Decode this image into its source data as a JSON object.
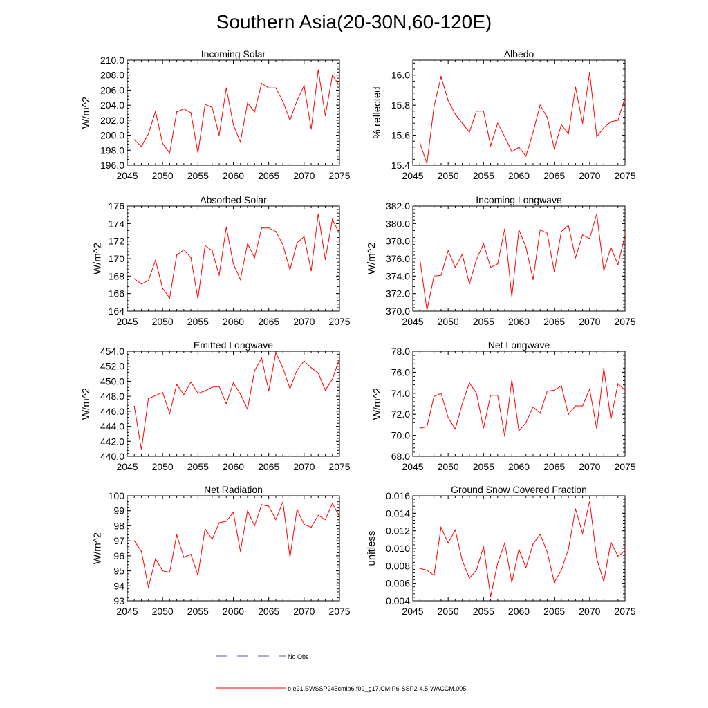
{
  "figure": {
    "title": "Southern Asia(20-30N,60-120E)",
    "legend": [
      {
        "label": "No Obs",
        "color": "#5a5aa8",
        "style": "dashed"
      },
      {
        "label": "b.e21.BWSSP245cmip6.f09_g17.CMIP6-SSP2-4.5-WACCM.005",
        "color": "#ff0000",
        "style": "solid"
      }
    ]
  },
  "chart_data": [
    {
      "type": "line",
      "title": "Incoming Solar",
      "ylabel": "W/m^2",
      "xlabel": "",
      "xlim": [
        2045,
        2075
      ],
      "xticks": [
        "2045",
        "2050",
        "2055",
        "2060",
        "2065",
        "2070",
        "2075"
      ],
      "ylim": [
        196.0,
        210.0
      ],
      "yticks": [
        "196.0",
        "198.0",
        "200.0",
        "202.0",
        "204.0",
        "206.0",
        "208.0",
        "210.0"
      ],
      "color": "#ff0000",
      "x": [
        2046,
        2047,
        2048,
        2049,
        2050,
        2051,
        2052,
        2053,
        2054,
        2055,
        2056,
        2057,
        2058,
        2059,
        2060,
        2061,
        2062,
        2063,
        2064,
        2065,
        2066,
        2067,
        2068,
        2069,
        2070,
        2071,
        2072,
        2073,
        2074,
        2075
      ],
      "values": [
        199.4,
        198.5,
        200.2,
        203.2,
        198.9,
        197.6,
        203.1,
        203.5,
        203.0,
        197.6,
        204.1,
        203.7,
        200.0,
        206.3,
        201.4,
        199.1,
        204.3,
        203.1,
        206.9,
        206.3,
        206.3,
        204.5,
        202.0,
        204.6,
        206.6,
        200.8,
        208.7,
        202.6,
        208.0,
        206.6
      ]
    },
    {
      "type": "line",
      "title": "Albedo",
      "ylabel": "% reflected",
      "xlabel": "",
      "xlim": [
        2045,
        2075
      ],
      "xticks": [
        "2045",
        "2050",
        "2055",
        "2060",
        "2065",
        "2070",
        "2075"
      ],
      "ylim": [
        15.4,
        16.1
      ],
      "yticks": [
        "15.4",
        "15.6",
        "15.8",
        "16.0"
      ],
      "color": "#ff0000",
      "x": [
        2046,
        2047,
        2048,
        2049,
        2050,
        2051,
        2052,
        2053,
        2054,
        2055,
        2056,
        2057,
        2058,
        2059,
        2060,
        2061,
        2062,
        2063,
        2064,
        2065,
        2066,
        2067,
        2068,
        2069,
        2070,
        2071,
        2072,
        2073,
        2074,
        2075
      ],
      "values": [
        15.55,
        15.41,
        15.79,
        15.99,
        15.83,
        15.74,
        15.68,
        15.62,
        15.76,
        15.76,
        15.53,
        15.68,
        15.59,
        15.49,
        15.52,
        15.46,
        15.62,
        15.8,
        15.72,
        15.51,
        15.67,
        15.61,
        15.92,
        15.68,
        16.02,
        15.59,
        15.65,
        15.69,
        15.7,
        15.85
      ]
    },
    {
      "type": "line",
      "title": "Absorbed Solar",
      "ylabel": "W/m^2",
      "xlabel": "",
      "xlim": [
        2045,
        2075
      ],
      "xticks": [
        "2045",
        "2050",
        "2055",
        "2060",
        "2065",
        "2070",
        "2075"
      ],
      "ylim": [
        164,
        176
      ],
      "yticks": [
        "164",
        "166",
        "168",
        "170",
        "172",
        "174",
        "176"
      ],
      "color": "#ff0000",
      "x": [
        2046,
        2047,
        2048,
        2049,
        2050,
        2051,
        2052,
        2053,
        2054,
        2055,
        2056,
        2057,
        2058,
        2059,
        2060,
        2061,
        2062,
        2063,
        2064,
        2065,
        2066,
        2067,
        2068,
        2069,
        2070,
        2071,
        2072,
        2073,
        2074,
        2075
      ],
      "values": [
        167.7,
        167.1,
        167.5,
        169.8,
        166.6,
        165.5,
        170.4,
        171.0,
        170.1,
        165.4,
        171.5,
        170.9,
        168.1,
        173.6,
        169.4,
        167.6,
        171.7,
        170.1,
        173.5,
        173.5,
        173.1,
        171.6,
        168.7,
        171.8,
        172.5,
        168.6,
        175.1,
        169.9,
        174.5,
        172.8
      ]
    },
    {
      "type": "line",
      "title": "Incoming Longwave",
      "ylabel": "W/m^2",
      "xlabel": "",
      "xlim": [
        2045,
        2075
      ],
      "xticks": [
        "2045",
        "2050",
        "2055",
        "2060",
        "2065",
        "2070",
        "2075"
      ],
      "ylim": [
        370.0,
        382.0
      ],
      "yticks": [
        "370.0",
        "372.0",
        "374.0",
        "376.0",
        "378.0",
        "380.0",
        "382.0"
      ],
      "color": "#ff0000",
      "x": [
        2046,
        2047,
        2048,
        2049,
        2050,
        2051,
        2052,
        2053,
        2054,
        2055,
        2056,
        2057,
        2058,
        2059,
        2060,
        2061,
        2062,
        2063,
        2064,
        2065,
        2066,
        2067,
        2068,
        2069,
        2070,
        2071,
        2072,
        2073,
        2074,
        2075
      ],
      "values": [
        376.0,
        370.1,
        374.0,
        374.1,
        376.9,
        375.0,
        376.5,
        373.1,
        375.9,
        377.7,
        375.0,
        375.4,
        379.4,
        371.6,
        379.3,
        377.3,
        373.6,
        379.3,
        378.9,
        374.5,
        379.1,
        379.8,
        376.1,
        378.7,
        378.3,
        381.1,
        374.6,
        377.3,
        375.3,
        378.7
      ]
    },
    {
      "type": "line",
      "title": "Emitted Longwave",
      "ylabel": "W/m^2",
      "xlabel": "",
      "xlim": [
        2045,
        2075
      ],
      "xticks": [
        "2045",
        "2050",
        "2055",
        "2060",
        "2065",
        "2070",
        "2075"
      ],
      "ylim": [
        440.0,
        454.0
      ],
      "yticks": [
        "440.0",
        "442.0",
        "444.0",
        "446.0",
        "448.0",
        "450.0",
        "452.0",
        "454.0"
      ],
      "color": "#ff0000",
      "x": [
        2046,
        2047,
        2048,
        2049,
        2050,
        2051,
        2052,
        2053,
        2054,
        2055,
        2056,
        2057,
        2058,
        2059,
        2060,
        2061,
        2062,
        2063,
        2064,
        2065,
        2066,
        2067,
        2068,
        2069,
        2070,
        2071,
        2072,
        2073,
        2074,
        2075
      ],
      "values": [
        446.7,
        440.9,
        447.7,
        448.1,
        448.5,
        445.7,
        449.6,
        448.2,
        449.9,
        448.4,
        448.7,
        449.2,
        449.3,
        447.0,
        449.8,
        448.3,
        446.3,
        451.4,
        453.1,
        448.7,
        453.8,
        451.8,
        449.0,
        451.5,
        452.7,
        451.8,
        451.1,
        448.8,
        450.3,
        453.0
      ]
    },
    {
      "type": "line",
      "title": "Net Longwave",
      "ylabel": "W/m^2",
      "xlabel": "",
      "xlim": [
        2045,
        2075
      ],
      "xticks": [
        "2045",
        "2050",
        "2055",
        "2060",
        "2065",
        "2070",
        "2075"
      ],
      "ylim": [
        68.0,
        78.0
      ],
      "yticks": [
        "68.0",
        "70.0",
        "72.0",
        "74.0",
        "76.0",
        "78.0"
      ],
      "color": "#ff0000",
      "x": [
        2046,
        2047,
        2048,
        2049,
        2050,
        2051,
        2052,
        2053,
        2054,
        2055,
        2056,
        2057,
        2058,
        2059,
        2060,
        2061,
        2062,
        2063,
        2064,
        2065,
        2066,
        2067,
        2068,
        2069,
        2070,
        2071,
        2072,
        2073,
        2074,
        2075
      ],
      "values": [
        70.7,
        70.8,
        73.7,
        74.0,
        71.7,
        70.6,
        73.0,
        75.0,
        74.0,
        70.7,
        73.8,
        73.8,
        69.9,
        75.3,
        70.4,
        71.2,
        72.7,
        72.1,
        74.2,
        74.3,
        74.7,
        72.0,
        72.8,
        72.8,
        74.4,
        70.6,
        76.4,
        71.5,
        74.9,
        74.3
      ]
    },
    {
      "type": "line",
      "title": "Net Radiation",
      "ylabel": "W/m^2",
      "xlabel": "",
      "xlim": [
        2045,
        2075
      ],
      "xticks": [
        "2045",
        "2050",
        "2055",
        "2060",
        "2065",
        "2070",
        "2075"
      ],
      "ylim": [
        93,
        100
      ],
      "yticks": [
        "93",
        "94",
        "95",
        "96",
        "97",
        "98",
        "99",
        "100"
      ],
      "color": "#ff0000",
      "x": [
        2046,
        2047,
        2048,
        2049,
        2050,
        2051,
        2052,
        2053,
        2054,
        2055,
        2056,
        2057,
        2058,
        2059,
        2060,
        2061,
        2062,
        2063,
        2064,
        2065,
        2066,
        2067,
        2068,
        2069,
        2070,
        2071,
        2072,
        2073,
        2074,
        2075
      ],
      "values": [
        97.0,
        96.3,
        93.9,
        95.8,
        95.0,
        94.9,
        97.4,
        95.9,
        96.1,
        94.7,
        97.8,
        97.1,
        98.2,
        98.3,
        98.9,
        96.3,
        99.0,
        98.0,
        99.4,
        99.3,
        98.4,
        99.6,
        95.9,
        99.1,
        98.1,
        97.9,
        98.7,
        98.4,
        99.5,
        98.6
      ]
    },
    {
      "type": "line",
      "title": "Ground Snow Covered Fraction",
      "ylabel": "unitless",
      "xlabel": "",
      "xlim": [
        2045,
        2075
      ],
      "xticks": [
        "2045",
        "2050",
        "2055",
        "2060",
        "2065",
        "2070",
        "2075"
      ],
      "ylim": [
        0.004,
        0.016
      ],
      "yticks": [
        "0.004",
        "0.006",
        "0.008",
        "0.010",
        "0.012",
        "0.014",
        "0.016"
      ],
      "color": "#ff0000",
      "x": [
        2046,
        2047,
        2048,
        2049,
        2050,
        2051,
        2052,
        2053,
        2054,
        2055,
        2056,
        2057,
        2058,
        2059,
        2060,
        2061,
        2062,
        2063,
        2064,
        2065,
        2066,
        2067,
        2068,
        2069,
        2070,
        2071,
        2072,
        2073,
        2074,
        2075
      ],
      "values": [
        0.0077,
        0.0075,
        0.0069,
        0.0124,
        0.0106,
        0.0121,
        0.0086,
        0.0066,
        0.0075,
        0.0102,
        0.0045,
        0.0083,
        0.0106,
        0.0061,
        0.0099,
        0.0078,
        0.0105,
        0.0116,
        0.0096,
        0.0061,
        0.0075,
        0.0099,
        0.0145,
        0.0117,
        0.0154,
        0.0088,
        0.0062,
        0.0107,
        0.0091,
        0.0097
      ]
    }
  ]
}
